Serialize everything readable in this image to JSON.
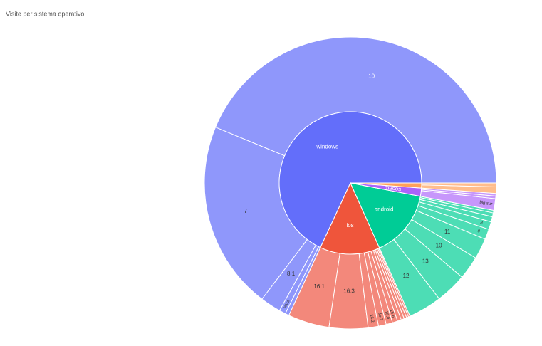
{
  "chart_data": {
    "type": "sunburst",
    "title": "Visite per sistema operativo",
    "series": [
      {
        "name": "windows",
        "color": "#636efa",
        "child_color": "#8f97fb",
        "children": [
          {
            "name": "10",
            "value": 1530
          },
          {
            "name": "7",
            "value": 730
          },
          {
            "name": "8.1",
            "value": 80
          },
          {
            "name": "vista",
            "value": 25
          },
          {
            "name": null,
            "value": 15
          }
        ]
      },
      {
        "name": "ios",
        "color": "#ef553b",
        "child_color": "#f3887b",
        "children": [
          {
            "name": "16.1",
            "value": 160
          },
          {
            "name": "16.3",
            "value": 150
          },
          {
            "name": "16.2",
            "value": 40
          },
          {
            "name": "15.7",
            "value": 30
          },
          {
            "name": "16.0",
            "value": 25
          },
          {
            "name": "15.6",
            "value": 20
          },
          {
            "name": null,
            "value": 15
          },
          {
            "name": null,
            "value": 12
          },
          {
            "name": null,
            "value": 10
          },
          {
            "name": null,
            "value": 8
          },
          {
            "name": null,
            "value": 6
          }
        ]
      },
      {
        "name": "android",
        "color": "#00cc96",
        "child_color": "#4dddb5",
        "children": [
          {
            "name": "12",
            "value": 130
          },
          {
            "name": "13",
            "value": 120
          },
          {
            "name": "10",
            "value": 90
          },
          {
            "name": "11",
            "value": 80
          },
          {
            "name": "9",
            "value": 40
          },
          {
            "name": "8",
            "value": 30
          },
          {
            "name": null,
            "value": 20
          },
          {
            "name": null,
            "value": 15
          },
          {
            "name": null,
            "value": 10
          }
        ]
      },
      {
        "name": "macos",
        "color": "#ab63fa",
        "child_color": "#c797fb",
        "children": [
          {
            "name": "big sur",
            "value": 45
          },
          {
            "name": null,
            "value": 10
          },
          {
            "name": null,
            "value": 10
          }
        ]
      },
      {
        "name": null,
        "color": "#ffa15a",
        "child_color": "#ffbd8c",
        "children": [
          {
            "name": null,
            "value": 25
          },
          {
            "name": null,
            "value": 15
          }
        ]
      }
    ]
  }
}
